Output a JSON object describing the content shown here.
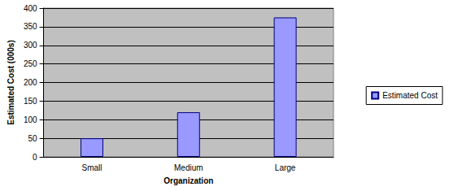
{
  "chart_data": {
    "type": "bar",
    "categories": [
      "Small",
      "Medium",
      "Large"
    ],
    "series": [
      {
        "name": "Estimated Cost",
        "color": "#9999ff",
        "values": [
          50,
          120,
          375
        ]
      }
    ],
    "x_label": "Organization",
    "y_label": "Estimated Cost (000s)",
    "ylim": [
      0,
      400
    ],
    "yticks": [
      0,
      50,
      100,
      150,
      200,
      250,
      300,
      350,
      400
    ],
    "grid": true,
    "legend": "right"
  }
}
